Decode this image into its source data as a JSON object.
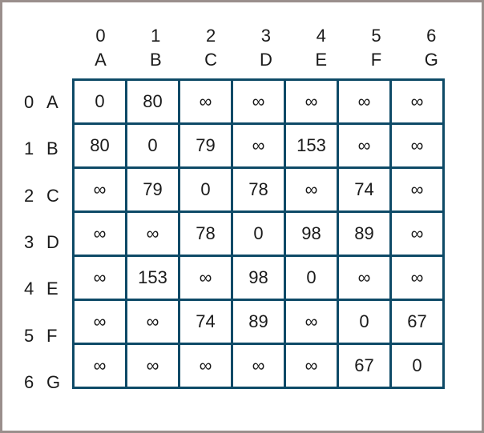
{
  "nodes": [
    {
      "index": "0",
      "label": "A"
    },
    {
      "index": "1",
      "label": "B"
    },
    {
      "index": "2",
      "label": "C"
    },
    {
      "index": "3",
      "label": "D"
    },
    {
      "index": "4",
      "label": "E"
    },
    {
      "index": "5",
      "label": "F"
    },
    {
      "index": "6",
      "label": "G"
    }
  ],
  "matrix": [
    [
      "0",
      "80",
      "∞",
      "∞",
      "∞",
      "∞",
      "∞"
    ],
    [
      "80",
      "0",
      "79",
      "∞",
      "153",
      "∞",
      "∞"
    ],
    [
      "∞",
      "79",
      "0",
      "78",
      "∞",
      "74",
      "∞"
    ],
    [
      "∞",
      "∞",
      "78",
      "0",
      "98",
      "89",
      "∞"
    ],
    [
      "∞",
      "153",
      "∞",
      "98",
      "0",
      "∞",
      "∞"
    ],
    [
      "∞",
      "∞",
      "74",
      "89",
      "∞",
      "0",
      "67"
    ],
    [
      "∞",
      "∞",
      "∞",
      "∞",
      "∞",
      "67",
      "0"
    ]
  ],
  "colors": {
    "grid": "#0e4a67",
    "frame": "#9a8f8c"
  }
}
